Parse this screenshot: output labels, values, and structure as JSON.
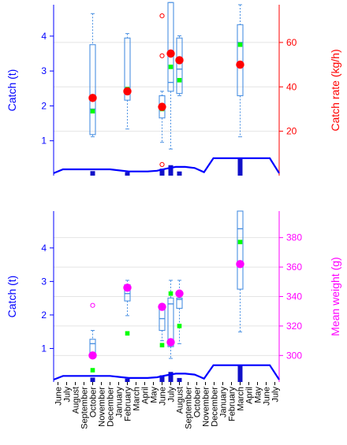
{
  "chart_data": [
    {
      "type": "box",
      "panel": "top",
      "left_axis": {
        "label": "Catch (t)",
        "ticks": [
          1,
          2,
          3,
          4
        ],
        "range": [
          0,
          4.9
        ]
      },
      "right_axis": {
        "label": "Catch rate (kg/h)",
        "ticks": [
          20,
          40,
          60
        ],
        "range": [
          0,
          77
        ]
      },
      "colors": {
        "left_axis": "#0000ff",
        "right_axis": "#ff0000",
        "box": "#4a90e2",
        "mean_marker": "#00ff00",
        "outlier": "#ff0000"
      },
      "boxes": [
        {
          "month_index": 4,
          "q1": 18.5,
          "median": 30,
          "q3": 59,
          "lower_whisker": 17.5,
          "upper_whisker": 73,
          "mean": 29,
          "average": 35
        },
        {
          "month_index": 8,
          "q1": 34,
          "median": 37,
          "q3": 62,
          "lower_whisker": 21,
          "upper_whisker": 64,
          "mean": 39,
          "average": 38
        },
        {
          "month_index": 12,
          "q1": 26,
          "median": 31,
          "q3": 36,
          "lower_whisker": 15,
          "upper_whisker": 38,
          "mean": 30,
          "average": 31,
          "outliers": [
            5,
            54,
            72
          ]
        },
        {
          "month_index": 13,
          "q1": 38,
          "median": 42,
          "q3": 78,
          "lower_whisker": 12,
          "upper_whisker": 78,
          "mean": 49,
          "average": 55
        },
        {
          "month_index": 14,
          "q1": 37,
          "median": 48,
          "q3": 62,
          "lower_whisker": 36,
          "upper_whisker": 63,
          "mean": 43,
          "average": 52
        },
        {
          "month_index": 21,
          "q1": 36,
          "median": 60,
          "q3": 68,
          "lower_whisker": 17.5,
          "upper_whisker": 77,
          "mean": 59,
          "average": 50
        }
      ],
      "catch_bars": [
        {
          "month_index": 4,
          "value": 0.13
        },
        {
          "month_index": 8,
          "value": 0.1
        },
        {
          "month_index": 12,
          "value": 0.2
        },
        {
          "month_index": 13,
          "value": 0.3
        },
        {
          "month_index": 14,
          "value": 0.12
        },
        {
          "month_index": 21,
          "value": 0.5
        }
      ],
      "catch_line": [
        0.07,
        0.18,
        0.18,
        0.18,
        0.18,
        0.18,
        0.18,
        0.15,
        0.12,
        0.12,
        0.12,
        0.14,
        0.2,
        0.25,
        0.25,
        0.22,
        0.1,
        0.5,
        0.5,
        0.5,
        0.5,
        0.5,
        0.5,
        0.5,
        0.07
      ]
    },
    {
      "type": "box",
      "panel": "bottom",
      "left_axis": {
        "label": "Catch (t)",
        "ticks": [
          1,
          2,
          3,
          4
        ],
        "range": [
          0,
          5.1
        ]
      },
      "right_axis": {
        "label": "Mean weight (g)",
        "ticks": [
          300,
          320,
          340,
          360,
          380
        ],
        "range": [
          282,
          398
        ]
      },
      "colors": {
        "left_axis": "#0000ff",
        "right_axis": "#ff00ff",
        "box": "#4a90e2",
        "mean_marker": "#00ff00",
        "outlier": "#ff00ff"
      },
      "boxes": [
        {
          "month_index": 4,
          "q1": 299,
          "median": 308,
          "q3": 311,
          "lower_whisker": 298,
          "upper_whisker": 317,
          "mean": 290,
          "average": 300,
          "outliers": [
            334
          ]
        },
        {
          "month_index": 8,
          "q1": 337,
          "median": 342,
          "q3": 348,
          "lower_whisker": 327,
          "upper_whisker": 351,
          "mean": 315,
          "average": 346
        },
        {
          "month_index": 12,
          "q1": 317,
          "median": 325,
          "q3": 332,
          "lower_whisker": 310,
          "upper_whisker": 334,
          "mean": 307,
          "average": 333
        },
        {
          "month_index": 13,
          "q1": 306,
          "median": 335,
          "q3": 339,
          "lower_whisker": 298,
          "upper_whisker": 351,
          "mean": 342,
          "average": 309
        },
        {
          "month_index": 14,
          "q1": 332,
          "median": 338,
          "q3": 339,
          "lower_whisker": 308,
          "upper_whisker": 351,
          "mean": 320,
          "average": 342
        },
        {
          "month_index": 21,
          "q1": 345,
          "median": 386,
          "q3": 398,
          "lower_whisker": 316,
          "upper_whisker": 398,
          "mean": 377,
          "average": 362
        }
      ],
      "catch_bars": [
        {
          "month_index": 4,
          "value": 0.13
        },
        {
          "month_index": 8,
          "value": 0.1
        },
        {
          "month_index": 12,
          "value": 0.2
        },
        {
          "month_index": 13,
          "value": 0.3
        },
        {
          "month_index": 14,
          "value": 0.12
        },
        {
          "month_index": 21,
          "value": 0.5
        }
      ],
      "catch_line": [
        0.07,
        0.18,
        0.18,
        0.18,
        0.18,
        0.18,
        0.18,
        0.15,
        0.12,
        0.12,
        0.12,
        0.14,
        0.2,
        0.25,
        0.25,
        0.22,
        0.1,
        0.5,
        0.5,
        0.5,
        0.5,
        0.5,
        0.5,
        0.5,
        0.07
      ],
      "x_ticks": [
        "June",
        "July",
        "August",
        "September",
        "October",
        "November",
        "December",
        "January",
        "February",
        "March",
        "April",
        "May",
        "June",
        "July",
        "August",
        "September",
        "October",
        "November",
        "December",
        "January",
        "February",
        "March",
        "April",
        "May",
        "June",
        "July"
      ]
    }
  ]
}
